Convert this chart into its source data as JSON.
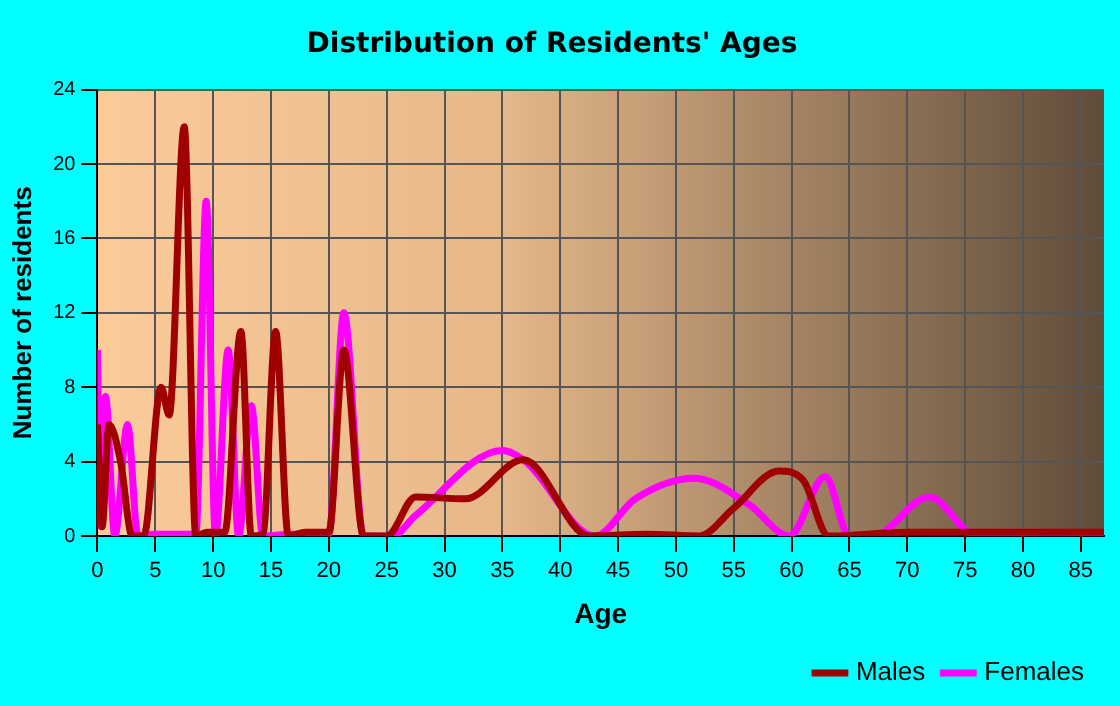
{
  "chart_data": {
    "type": "line",
    "title": "Distribution of Residents' Ages",
    "xlabel": "Age",
    "ylabel": "Number of residents",
    "xlim": [
      0,
      87
    ],
    "xticks": [
      0,
      5,
      10,
      15,
      20,
      25,
      30,
      35,
      40,
      45,
      50,
      55,
      60,
      65,
      70,
      75,
      80,
      85
    ],
    "ylim": [
      0,
      24
    ],
    "yticks": [
      0,
      4,
      8,
      12,
      16,
      20,
      24
    ],
    "grid": true,
    "legend": "bottom right",
    "marker": "none",
    "line_style": "solid",
    "series": [
      {
        "name": "Males",
        "color": "#a00000",
        "x": [
          0,
          0.4,
          1,
          2,
          3,
          4,
          5.5,
          6.2,
          7.5,
          8.5,
          9.5,
          11,
          12.4,
          13.3,
          14.3,
          15.4,
          16.5,
          18,
          20,
          21.3,
          23,
          25,
          27.5,
          31.8,
          36.8,
          42.5,
          47.5,
          52,
          55,
          58.9,
          61,
          63.2,
          70,
          80,
          87
        ],
        "values": [
          6,
          0.5,
          6,
          4,
          0,
          0,
          8,
          6.5,
          22,
          0,
          0.2,
          0.2,
          11,
          0,
          0.1,
          11,
          0,
          0.2,
          0.2,
          10,
          0,
          0,
          2.1,
          2,
          4.1,
          0,
          0.1,
          0,
          1.5,
          3.5,
          3,
          0,
          0.2,
          0.2,
          0.2
        ]
      },
      {
        "name": "Females",
        "color": "#ff00ff",
        "x": [
          0,
          0.3,
          0.7,
          1.5,
          2.6,
          3.5,
          5,
          8.5,
          9.4,
          10.2,
          11.3,
          12.2,
          13.3,
          14.3,
          17,
          20,
          21.3,
          23,
          25.5,
          27.5,
          35,
          37,
          43,
          46.5,
          51.6,
          56.3,
          59.8,
          62.9,
          65,
          67,
          71.9,
          76,
          87
        ],
        "values": [
          10,
          0.5,
          7.5,
          0,
          6,
          0,
          0.1,
          0.1,
          18,
          0,
          10,
          0,
          7,
          0,
          0.1,
          0.1,
          12,
          0,
          0,
          1.1,
          4.6,
          4,
          0,
          2,
          3.1,
          1.7,
          0,
          3.2,
          0,
          0,
          2.1,
          0,
          0
        ]
      }
    ]
  }
}
